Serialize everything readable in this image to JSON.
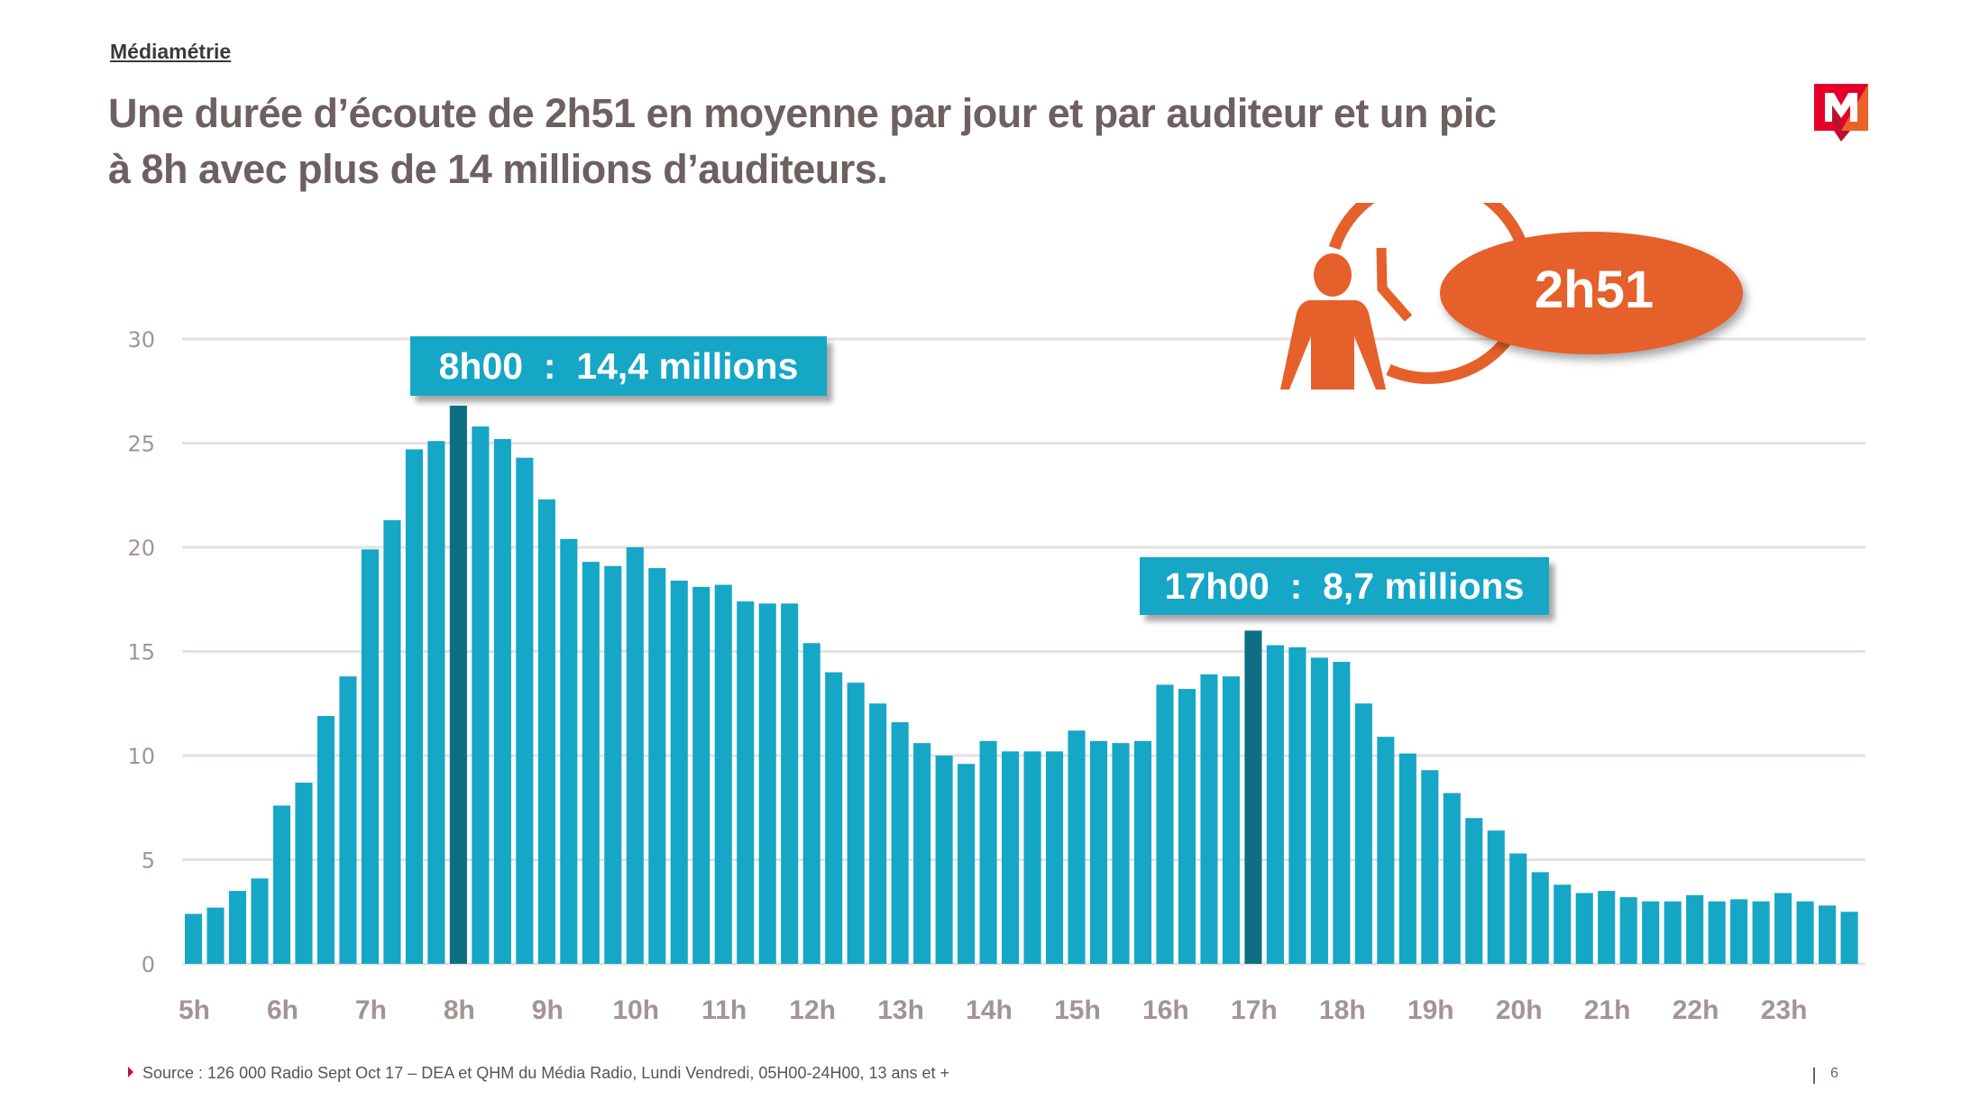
{
  "header": {
    "brand": "Médiamétrie",
    "title_line1": "Une durée d’écoute de 2h51 en moyenne par jour et par auditeur et un pic",
    "title_line2": "à 8h avec plus de 14 millions d’auditeurs."
  },
  "logo": {
    "icon": "mediametrie-logo-icon",
    "colors": [
      "#e4002b",
      "#e8622a",
      "#b5132f"
    ]
  },
  "badge": {
    "icon": "person-clock-icon",
    "value": "2h51",
    "color": "#e5602b"
  },
  "callouts": [
    {
      "label": "8h00  :  14,4 millions"
    },
    {
      "label": "17h00  :  8,7 millions"
    }
  ],
  "colors": {
    "bar": "#16a6c6",
    "bar_highlight": "#0e6f83",
    "grid": "#e6e1e1",
    "axis_text": "#a39494",
    "title": "#6e6060"
  },
  "footer": {
    "source": "Source : 126 000 Radio Sept Oct 17 – DEA et QHM du Média Radio, Lundi Vendredi, 05H00-24H00, 13 ans et +",
    "page_number": "6"
  },
  "chart_data": {
    "type": "bar",
    "title": "",
    "xlabel": "",
    "ylabel": "",
    "ylim": [
      0,
      30
    ],
    "yticks": [
      0,
      5,
      10,
      15,
      20,
      25,
      30
    ],
    "grid": true,
    "legend": "none",
    "x_tick_labels": [
      "5h",
      "6h",
      "7h",
      "8h",
      "9h",
      "10h",
      "11h",
      "12h",
      "13h",
      "14h",
      "15h",
      "16h",
      "17h",
      "18h",
      "19h",
      "20h",
      "21h",
      "22h",
      "23h"
    ],
    "bars_per_hour": 4,
    "highlighted_indices": [
      12,
      48
    ],
    "values": [
      2.4,
      2.7,
      3.5,
      4.1,
      7.6,
      8.7,
      11.9,
      13.8,
      19.9,
      21.3,
      24.7,
      25.1,
      26.8,
      25.8,
      25.2,
      24.3,
      22.3,
      20.4,
      19.3,
      19.1,
      20.0,
      19.0,
      18.4,
      18.1,
      18.2,
      17.4,
      17.3,
      17.3,
      15.4,
      14.0,
      13.5,
      12.5,
      11.6,
      10.6,
      10.0,
      9.6,
      10.7,
      10.2,
      10.2,
      10.2,
      11.2,
      10.7,
      10.6,
      10.7,
      13.4,
      13.2,
      13.9,
      13.8,
      16.0,
      15.3,
      15.2,
      14.7,
      14.5,
      12.5,
      10.9,
      10.1,
      9.3,
      8.2,
      7.0,
      6.4,
      5.3,
      4.4,
      3.8,
      3.4,
      3.5,
      3.2,
      3.0,
      3.0,
      3.3,
      3.0,
      3.1,
      3.0,
      3.4,
      3.0,
      2.8,
      2.5
    ],
    "annotations": [
      {
        "bar_index": 12,
        "text": "8h00  :  14,4 millions"
      },
      {
        "bar_index": 48,
        "text": "17h00  :  8,7 millions"
      }
    ]
  }
}
